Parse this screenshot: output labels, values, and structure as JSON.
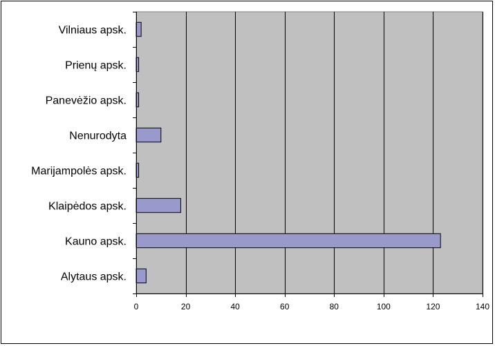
{
  "chart_data": {
    "type": "bar",
    "orientation": "horizontal",
    "categories": [
      "Vilniaus apsk.",
      "Prienų apsk.",
      "Panevėžio apsk.",
      "Nenurodyta",
      "Marijampolės apsk.",
      "Klaipėdos apsk.",
      "Kauno apsk.",
      "Alytaus apsk."
    ],
    "values": [
      2,
      1,
      1,
      10,
      1,
      18,
      123,
      4
    ],
    "xlim": [
      0,
      140
    ],
    "x_ticks": [
      0,
      20,
      40,
      60,
      80,
      100,
      120,
      140
    ],
    "title": "",
    "xlabel": "",
    "ylabel": "",
    "grid": "vertical",
    "legend": "none",
    "colors": {
      "plot_background": "#c0c0c0",
      "bar_fill": "#9999cc",
      "bar_stroke": "#000000",
      "gridline": "#000000"
    }
  }
}
